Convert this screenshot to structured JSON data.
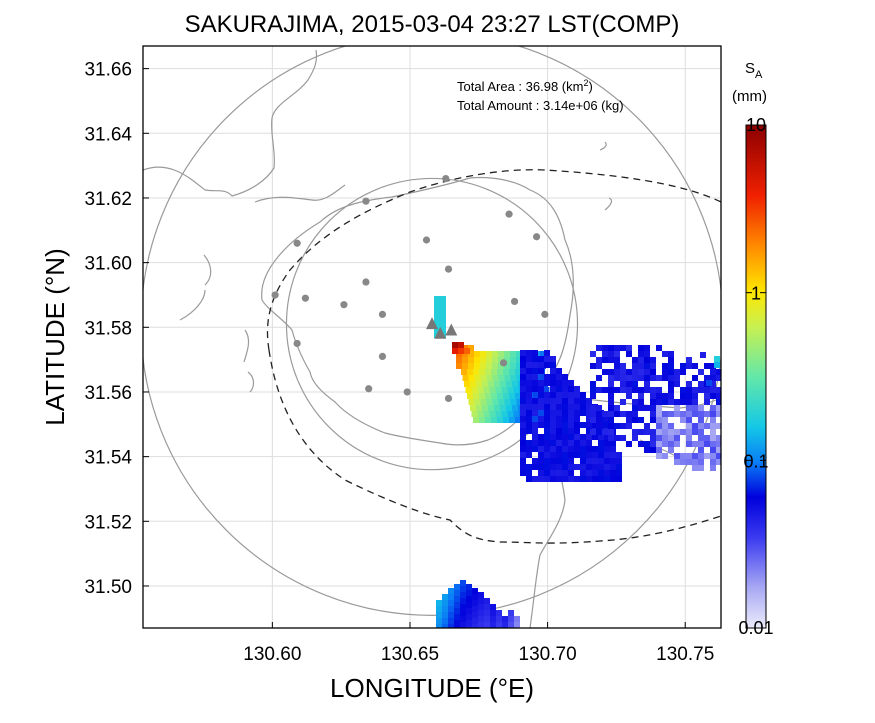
{
  "chart_data": {
    "type": "heatmap",
    "title": "SAKURAJIMA, 2015-03-04 23:27 LST(COMP)",
    "xlabel": "LONGITUDE (°E)",
    "ylabel": "LATITUDE (°N)",
    "xlim": [
      130.553,
      130.763
    ],
    "ylim": [
      31.487,
      31.667
    ],
    "xticks": [
      "130.60",
      "130.65",
      "130.70",
      "130.75"
    ],
    "yticks": [
      "31.50",
      "31.52",
      "31.54",
      "31.56",
      "31.58",
      "31.60",
      "31.62",
      "31.64",
      "31.66"
    ],
    "grid": true,
    "annotation": {
      "area_label": "Total Area   : 36.98 (km",
      "area_sup": "2",
      "area_end": ")",
      "amount_label": "Total Amount : 3.14e+06 (kg)"
    },
    "colorbar": {
      "label_main": "S",
      "label_sub": "A",
      "unit": "(mm)",
      "scale": "log",
      "range": [
        0.01,
        10
      ],
      "ticks": [
        "10",
        "1",
        "0.1",
        "0.01"
      ]
    },
    "vents": [
      [
        130.658,
        31.581
      ],
      [
        130.661,
        31.578
      ],
      [
        130.665,
        31.579
      ]
    ],
    "stations": [
      [
        130.663,
        31.626
      ],
      [
        130.634,
        31.619
      ],
      [
        130.686,
        31.615
      ],
      [
        130.609,
        31.606
      ],
      [
        130.656,
        31.607
      ],
      [
        130.696,
        31.608
      ],
      [
        130.664,
        31.598
      ],
      [
        130.601,
        31.59
      ],
      [
        130.612,
        31.589
      ],
      [
        130.634,
        31.594
      ],
      [
        130.626,
        31.587
      ],
      [
        130.64,
        31.584
      ],
      [
        130.688,
        31.588
      ],
      [
        130.699,
        31.584
      ],
      [
        130.609,
        31.575
      ],
      [
        130.64,
        31.571
      ],
      [
        130.635,
        31.561
      ],
      [
        130.649,
        31.56
      ],
      [
        130.664,
        31.558
      ],
      [
        130.684,
        31.569
      ]
    ],
    "range_rings": [
      {
        "center": [
          130.658,
          31.581
        ],
        "radius_km": 5
      },
      {
        "center": [
          130.658,
          31.581
        ],
        "radius_km": 10
      }
    ],
    "colors": {
      "stations": "#888888",
      "vents": "#777777",
      "coast": "#9a9a9a",
      "rings": "#9a9a9a",
      "grid": "#dddddd"
    }
  }
}
